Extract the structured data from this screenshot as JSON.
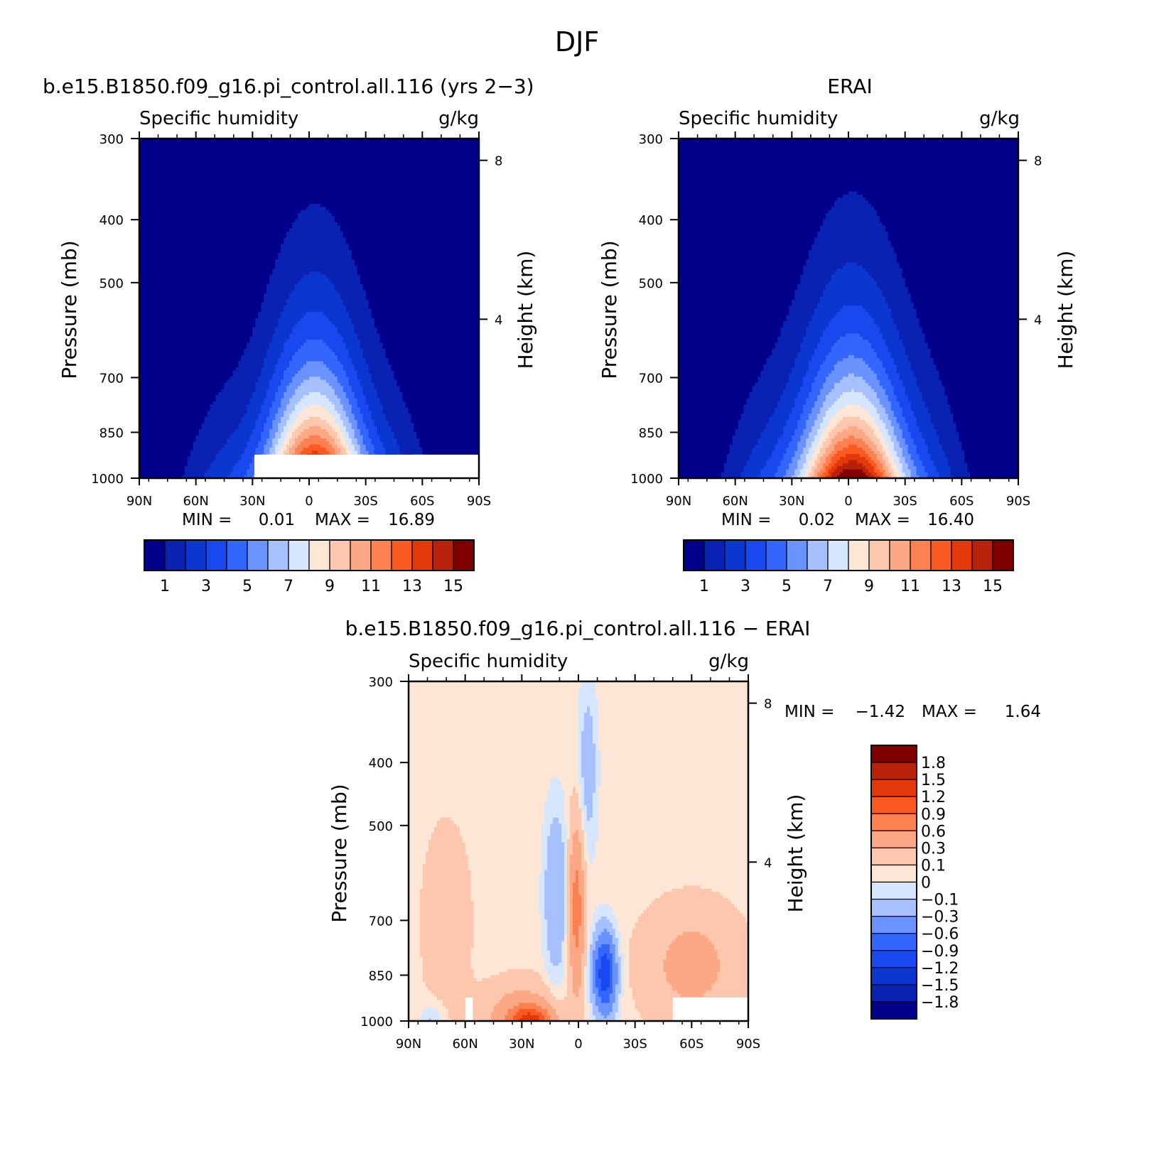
{
  "figure": {
    "title": "DJF"
  },
  "chart_data": [
    {
      "type": "heatmap",
      "id": "model",
      "title": "b.e15.B1850.f09_g16.pi_control.all.116 (yrs 2−3)",
      "left_label": "Specific humidity",
      "right_label": "g/kg",
      "ylabel": "Pressure (mb)",
      "ylabel_right": "Height (km)",
      "x_ticks": [
        "90N",
        "60N",
        "30N",
        "0",
        "30S",
        "60S",
        "90S"
      ],
      "x_range": [
        90,
        -90
      ],
      "y_ticks": [
        "300",
        "400",
        "500",
        "700",
        "850",
        "1000"
      ],
      "y_range": [
        1000,
        300
      ],
      "y_scale": "log",
      "height_ticks": [
        "8",
        "4"
      ],
      "min_label": "MIN =",
      "min_value": "0.01",
      "max_label": "MAX =",
      "max_value": "16.89",
      "min": 0.01,
      "max": 16.89,
      "field": {
        "peak": 16.89,
        "peak_lat": -3,
        "peak_p": 1000,
        "lat_spread": 26,
        "top_p": 410,
        "background": 0.2
      },
      "colorbar_labels": [
        "1",
        "3",
        "5",
        "7",
        "9",
        "11",
        "13",
        "15"
      ]
    },
    {
      "type": "heatmap",
      "id": "obs",
      "title": "ERAI",
      "left_label": "Specific humidity",
      "right_label": "g/kg",
      "ylabel": "Pressure (mb)",
      "ylabel_right": "Height (km)",
      "x_ticks": [
        "90N",
        "60N",
        "30N",
        "0",
        "30S",
        "60S",
        "90S"
      ],
      "x_range": [
        90,
        -90
      ],
      "y_ticks": [
        "300",
        "400",
        "500",
        "700",
        "850",
        "1000"
      ],
      "y_range": [
        1000,
        300
      ],
      "y_scale": "log",
      "height_ticks": [
        "8",
        "4"
      ],
      "min_label": "MIN =",
      "min_value": "0.02",
      "max_label": "MAX =",
      "max_value": "16.40",
      "min": 0.02,
      "max": 16.4,
      "field": {
        "peak": 16.4,
        "peak_lat": -2,
        "peak_p": 1000,
        "lat_spread": 28,
        "top_p": 390,
        "background": 0.2
      },
      "colorbar_labels": [
        "1",
        "3",
        "5",
        "7",
        "9",
        "11",
        "13",
        "15"
      ]
    },
    {
      "type": "heatmap",
      "id": "diff",
      "title": "b.e15.B1850.f09_g16.pi_control.all.116 − ERAI",
      "left_label": "Specific humidity",
      "right_label": "g/kg",
      "ylabel": "Pressure (mb)",
      "ylabel_right": "Height (km)",
      "x_ticks": [
        "90N",
        "60N",
        "30N",
        "0",
        "30S",
        "60S",
        "90S"
      ],
      "x_range": [
        90,
        -90
      ],
      "y_ticks": [
        "300",
        "400",
        "500",
        "700",
        "850",
        "1000"
      ],
      "y_range": [
        1000,
        300
      ],
      "y_scale": "log",
      "height_ticks": [
        "8",
        "4"
      ],
      "min_label": "MIN =",
      "min_value": "−1.42",
      "max_label": "MAX =",
      "max_value": "1.64",
      "min": -1.42,
      "max": 1.64,
      "colorbar_labels": [
        "1.8",
        "1.5",
        "1.2",
        "0.9",
        "0.6",
        "0.3",
        "0.1",
        "0",
        "−0.1",
        "−0.3",
        "−0.6",
        "−0.9",
        "−1.2",
        "−1.5",
        "−1.8"
      ]
    }
  ],
  "colors": {
    "sequential": [
      "#00008b",
      "#0a22b4",
      "#0b36d0",
      "#1848ee",
      "#3366ff",
      "#6a93ff",
      "#a7c0ff",
      "#d6e6ff",
      "#fde6d5",
      "#fcc7ad",
      "#fca884",
      "#fc8050",
      "#fa5a22",
      "#e3380a",
      "#b8220a",
      "#800000"
    ],
    "diverging": [
      "#800000",
      "#b8220a",
      "#e3380a",
      "#fa5a22",
      "#fc8050",
      "#fca884",
      "#fcc7ad",
      "#fde6d5",
      "#d6e6ff",
      "#a7c0ff",
      "#6a93ff",
      "#3366ff",
      "#1848ee",
      "#0b36d0",
      "#0a22b4",
      "#00008b"
    ]
  }
}
